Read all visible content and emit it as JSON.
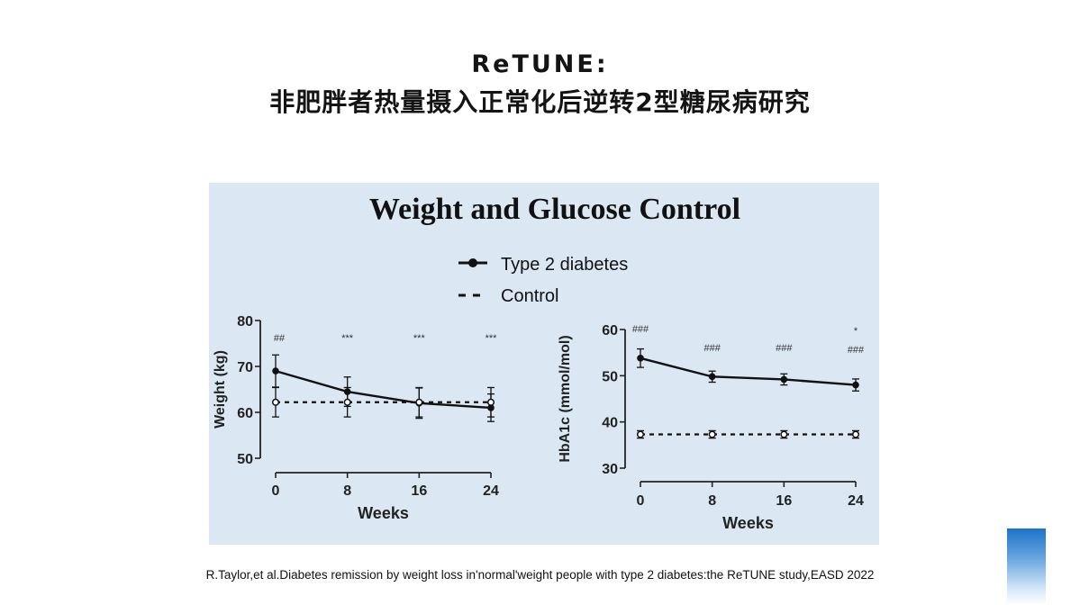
{
  "slide": {
    "title_line1": "ReTUNE:",
    "title_line2": "非肥胖者热量摄入正常化后逆转2型糖尿病研究",
    "citation": "R.Taylor,et al.Diabetes remission by weight loss in'normal'weight people with type 2 diabetes:the ReTUNE study,EASD 2022"
  },
  "figure": {
    "title": "Weight and Glucose Control",
    "legend": [
      "Type 2 diabetes",
      "Control"
    ]
  },
  "chart_data": [
    {
      "type": "line",
      "xlabel": "Weeks",
      "ylabel": "Weight (kg)",
      "x": [
        0,
        8,
        16,
        24
      ],
      "xticks": [
        0,
        8,
        16,
        24
      ],
      "yticks": [
        50,
        60,
        70,
        80
      ],
      "ylim": [
        50,
        80
      ],
      "series": [
        {
          "name": "Type 2 diabetes",
          "style": "solid",
          "marker": "filled",
          "values": [
            69,
            64.5,
            62,
            61
          ],
          "errors": [
            3.5,
            3.2,
            3.3,
            3
          ]
        },
        {
          "name": "Control",
          "style": "dashed",
          "marker": "open",
          "values": [
            62.2,
            62.2,
            62.2,
            62.2
          ],
          "errors": [
            3.2,
            3.2,
            3.2,
            3.2
          ]
        }
      ],
      "annotations": [
        [
          "##"
        ],
        [
          "***"
        ],
        [
          "***"
        ],
        [
          "***"
        ]
      ]
    },
    {
      "type": "line",
      "xlabel": "Weeks",
      "ylabel": "HbA1c (mmol/mol)",
      "x": [
        0,
        8,
        16,
        24
      ],
      "xticks": [
        0,
        8,
        16,
        24
      ],
      "yticks": [
        30,
        40,
        50,
        60
      ],
      "ylim": [
        30,
        60
      ],
      "series": [
        {
          "name": "Type 2 diabetes",
          "style": "solid",
          "marker": "filled",
          "values": [
            53.8,
            49.8,
            49.2,
            48
          ],
          "errors": [
            2,
            1.2,
            1.2,
            1.3
          ]
        },
        {
          "name": "Control",
          "style": "dashed",
          "marker": "open",
          "values": [
            37.3,
            37.3,
            37.3,
            37.3
          ],
          "errors": [
            0.8,
            0.8,
            0.8,
            0.8
          ]
        }
      ],
      "annotations": [
        [
          "###"
        ],
        [
          "###"
        ],
        [
          "###"
        ],
        [
          "*",
          "###"
        ]
      ]
    }
  ]
}
